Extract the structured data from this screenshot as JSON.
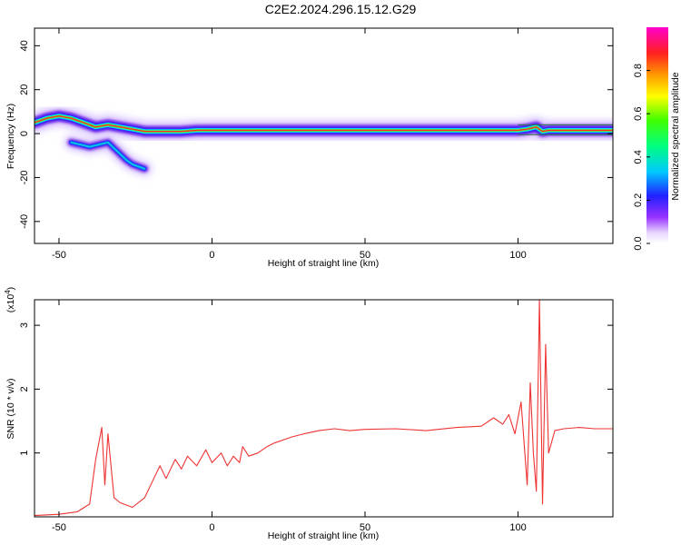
{
  "title": "C2E2.2024.296.15.12.G29",
  "chart_data": [
    {
      "type": "heatmap",
      "xlabel": "Height of straight line (km)",
      "ylabel": "Frequency (Hz)",
      "xlim": [
        -58,
        131
      ],
      "ylim": [
        -50,
        48
      ],
      "x_ticks": [
        -50,
        0,
        50,
        100
      ],
      "y_ticks": [
        40,
        20,
        0,
        -20,
        -40
      ],
      "colorbar": {
        "label": "Normalized spectral amplitude",
        "range": [
          0,
          1
        ],
        "ticks": [
          "0.0",
          "0.2",
          "0.4",
          "0.6",
          "0.8"
        ],
        "tick_values": [
          0,
          0.2,
          0.4,
          0.6,
          0.8
        ]
      },
      "ridge": {
        "x": [
          -58,
          -54,
          -50,
          -46,
          -42,
          -38,
          -34,
          -30,
          -26,
          -22,
          -18,
          -14,
          -10,
          -5,
          0,
          10,
          20,
          30,
          40,
          50,
          60,
          70,
          80,
          90,
          95,
          100,
          103,
          106,
          108,
          110,
          131
        ],
        "y": [
          5,
          7,
          8,
          7,
          5,
          3,
          4,
          3,
          2,
          1,
          1,
          1,
          1,
          1.5,
          1.5,
          1.5,
          1.5,
          1.5,
          1.5,
          1.5,
          1.5,
          1.5,
          1.5,
          1.5,
          1.5,
          1.5,
          2,
          3,
          1,
          1.5,
          1.5
        ]
      },
      "secondary": {
        "x": [
          -46,
          -43,
          -40,
          -37,
          -34,
          -31,
          -28,
          -26,
          -24,
          -22
        ],
        "y": [
          -4,
          -5,
          -6,
          -5,
          -4,
          -8,
          -12,
          -14,
          -15,
          -16
        ]
      }
    },
    {
      "type": "line",
      "xlabel": "Height of straight line (km)",
      "ylabel": "SNR (10 * v/v)",
      "y_scale_label": "(x10",
      "y_scale_exp": "4",
      "xlim": [
        -58,
        131
      ],
      "ylim": [
        0,
        3.4
      ],
      "x_ticks": [
        -50,
        0,
        50,
        100
      ],
      "y_ticks": [
        1,
        2,
        3
      ],
      "series": [
        {
          "color": "#ee3333",
          "x": [
            -58,
            -50,
            -44,
            -40,
            -38,
            -36,
            -35,
            -34,
            -32,
            -30,
            -26,
            -22,
            -19,
            -17,
            -15,
            -12,
            -10,
            -8,
            -5,
            -2,
            0,
            3,
            5,
            7,
            9,
            10,
            12,
            15,
            18,
            20,
            23,
            26,
            30,
            35,
            40,
            45,
            50,
            60,
            70,
            80,
            88,
            92,
            95,
            97,
            99,
            101,
            103,
            104,
            105,
            106,
            107,
            108,
            109,
            110,
            112,
            115,
            120,
            125,
            131
          ],
          "y": [
            0.02,
            0.04,
            0.08,
            0.2,
            0.9,
            1.4,
            0.5,
            1.3,
            0.3,
            0.22,
            0.15,
            0.3,
            0.6,
            0.8,
            0.6,
            0.9,
            0.75,
            0.95,
            0.8,
            1.05,
            0.85,
            1.0,
            0.8,
            0.95,
            0.85,
            1.1,
            0.95,
            1.0,
            1.1,
            1.15,
            1.2,
            1.25,
            1.3,
            1.35,
            1.38,
            1.35,
            1.37,
            1.38,
            1.35,
            1.4,
            1.42,
            1.55,
            1.45,
            1.6,
            1.3,
            1.8,
            0.5,
            2.1,
            1.0,
            0.4,
            3.4,
            0.2,
            2.7,
            1.0,
            1.35,
            1.38,
            1.4,
            1.38,
            1.38
          ]
        }
      ]
    }
  ]
}
